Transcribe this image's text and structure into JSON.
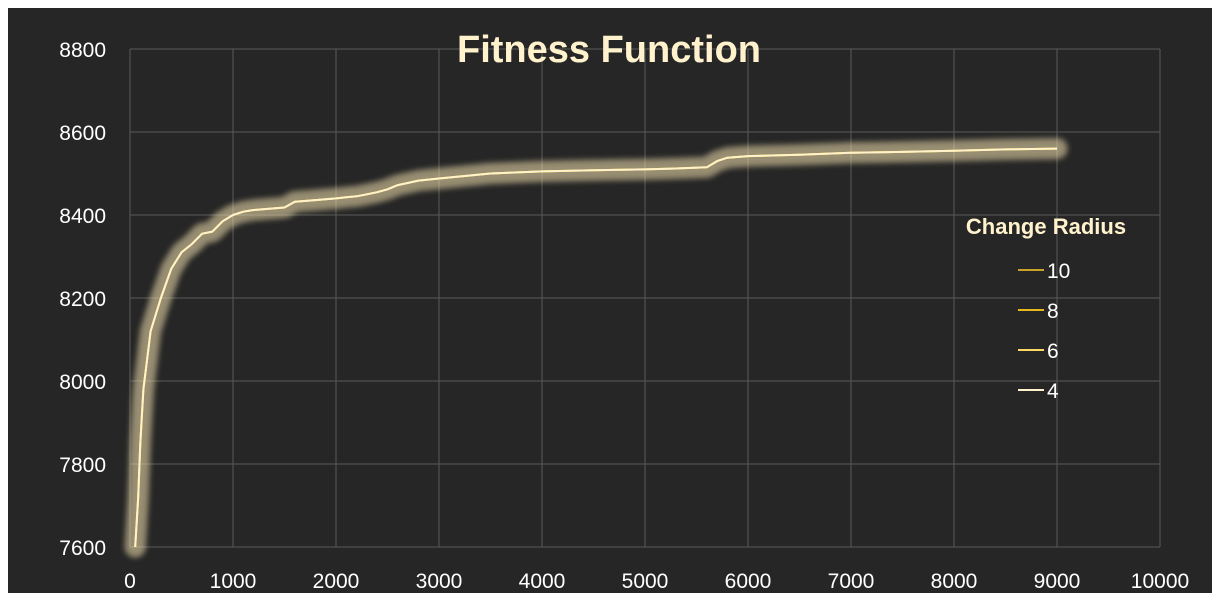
{
  "chart_data": {
    "type": "line",
    "title": "Fitness Function",
    "xlabel": "",
    "ylabel": "",
    "xlim": [
      0,
      10000
    ],
    "ylim": [
      7600,
      8800
    ],
    "x_ticks": [
      "0",
      "1000",
      "2000",
      "3000",
      "4000",
      "5000",
      "6000",
      "7000",
      "8000",
      "9000",
      "10000"
    ],
    "y_ticks": [
      "7600",
      "7800",
      "8000",
      "8200",
      "8400",
      "8600",
      "8800"
    ],
    "grid": true,
    "background_color": "#262626",
    "legend": {
      "title": "Change Radius",
      "position": "right"
    },
    "series": [
      {
        "name": "10",
        "color": "#c9a227",
        "x": [
          50,
          80,
          100,
          130,
          200,
          300,
          400,
          500,
          600,
          700,
          800,
          900,
          1000,
          1100,
          1200,
          1500,
          1600,
          1800,
          2000,
          2100,
          2200,
          2300,
          2400,
          2500,
          2600,
          2800,
          3000,
          3500,
          4000,
          4500,
          5000,
          5300,
          5600,
          5700,
          5800,
          6000,
          6500,
          7000,
          7500,
          8000,
          8500,
          9000
        ],
        "y": [
          7600,
          7720,
          7850,
          7980,
          8120,
          8200,
          8270,
          8310,
          8330,
          8355,
          8360,
          8385,
          8400,
          8408,
          8412,
          8418,
          8432,
          8436,
          8440,
          8443,
          8445,
          8450,
          8455,
          8462,
          8472,
          8483,
          8488,
          8500,
          8505,
          8508,
          8510,
          8512,
          8515,
          8530,
          8538,
          8542,
          8545,
          8550,
          8552,
          8555,
          8558,
          8560
        ]
      },
      {
        "name": "8",
        "color": "#e6b820",
        "x": [
          50,
          80,
          100,
          130,
          200,
          300,
          400,
          500,
          600,
          700,
          800,
          900,
          1000,
          1100,
          1200,
          1500,
          1600,
          1800,
          2000,
          2100,
          2200,
          2300,
          2400,
          2500,
          2600,
          2800,
          3000,
          3500,
          4000,
          4500,
          5000,
          5300,
          5600,
          5700,
          5800,
          6000,
          6500,
          7000,
          7500,
          8000,
          8500,
          9000
        ],
        "y": [
          7600,
          7720,
          7850,
          7980,
          8120,
          8200,
          8270,
          8310,
          8330,
          8355,
          8360,
          8385,
          8400,
          8408,
          8412,
          8418,
          8432,
          8436,
          8440,
          8443,
          8445,
          8450,
          8455,
          8462,
          8472,
          8483,
          8488,
          8500,
          8505,
          8508,
          8510,
          8512,
          8515,
          8530,
          8538,
          8542,
          8545,
          8550,
          8552,
          8555,
          8558,
          8560
        ]
      },
      {
        "name": "6",
        "color": "#ffd966",
        "x": [
          50,
          80,
          100,
          130,
          200,
          300,
          400,
          500,
          600,
          700,
          800,
          900,
          1000,
          1100,
          1200,
          1500,
          1600,
          1800,
          2000,
          2100,
          2200,
          2300,
          2400,
          2500,
          2600,
          2800,
          3000,
          3500,
          4000,
          4500,
          5000,
          5300,
          5600,
          5700,
          5800,
          6000,
          6500,
          7000,
          7500,
          8000,
          8500,
          9000
        ],
        "y": [
          7600,
          7720,
          7850,
          7980,
          8120,
          8200,
          8270,
          8310,
          8330,
          8355,
          8360,
          8385,
          8400,
          8408,
          8412,
          8418,
          8432,
          8436,
          8440,
          8443,
          8445,
          8450,
          8455,
          8462,
          8472,
          8483,
          8488,
          8500,
          8505,
          8508,
          8510,
          8512,
          8515,
          8530,
          8538,
          8542,
          8545,
          8550,
          8552,
          8555,
          8558,
          8560
        ]
      },
      {
        "name": "4",
        "color": "#fff2cc",
        "x": [
          50,
          80,
          100,
          130,
          200,
          300,
          400,
          500,
          600,
          700,
          800,
          900,
          1000,
          1100,
          1200,
          1500,
          1600,
          1800,
          2000,
          2100,
          2200,
          2300,
          2400,
          2500,
          2600,
          2800,
          3000,
          3500,
          4000,
          4500,
          5000,
          5300,
          5600,
          5700,
          5800,
          6000,
          6500,
          7000,
          7500,
          8000,
          8500,
          9000
        ],
        "y": [
          7600,
          7720,
          7850,
          7980,
          8120,
          8200,
          8270,
          8310,
          8330,
          8355,
          8360,
          8385,
          8400,
          8408,
          8412,
          8418,
          8432,
          8436,
          8440,
          8443,
          8445,
          8450,
          8455,
          8462,
          8472,
          8483,
          8488,
          8500,
          8505,
          8508,
          8510,
          8512,
          8515,
          8530,
          8538,
          8542,
          8545,
          8550,
          8552,
          8555,
          8558,
          8560
        ]
      }
    ]
  }
}
